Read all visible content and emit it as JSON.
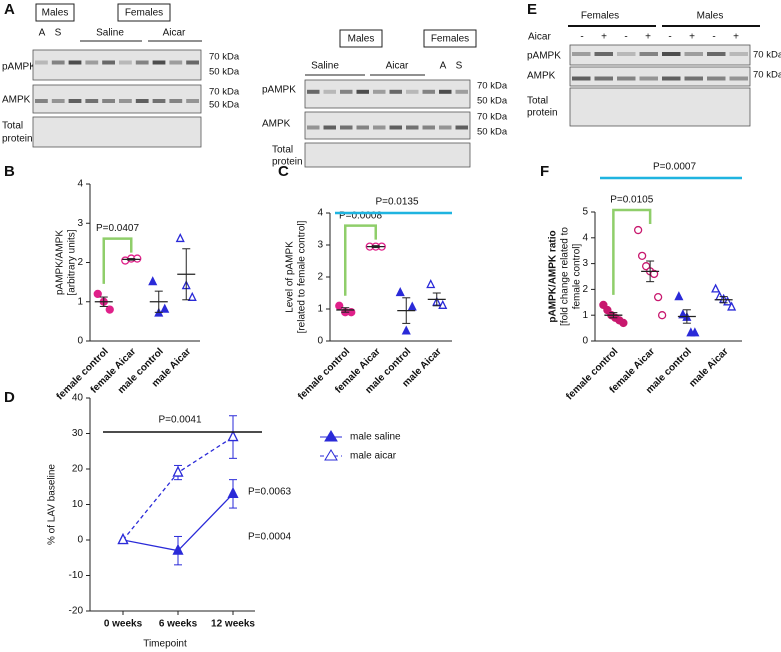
{
  "blots": [
    {
      "panel": "A",
      "boxes": [
        "Males",
        "Females"
      ],
      "lanes": [
        "A",
        "S",
        "Saline",
        "Aicar"
      ],
      "rows": [
        "pAMPK",
        "AMPK",
        "Total",
        "protein"
      ],
      "markers": [
        "70 kDa",
        "50 kDa",
        "70 kDa",
        "50 kDa"
      ]
    },
    {
      "boxes": [
        "Males",
        "Females"
      ],
      "lanes": [
        "Saline",
        "Aicar",
        "A",
        "S"
      ],
      "rows": [
        "pAMPK",
        "AMPK",
        "Total",
        "protein"
      ],
      "markers": [
        "70 kDa",
        "50 kDa",
        "70 kDa",
        "50 kDa"
      ]
    },
    {
      "panel": "E",
      "groups": [
        "Females",
        "Males"
      ],
      "treatment": "Aicar",
      "signs": [
        "-",
        "+",
        "-",
        "+",
        "-",
        "+",
        "-",
        "+"
      ],
      "rows": [
        "pAMPK",
        "AMPK",
        "Total",
        "protein"
      ],
      "markers": [
        "70 kDa",
        "70 kDa"
      ]
    }
  ],
  "chart_data": [
    {
      "type": "dotplot",
      "panel": "B",
      "ylabel": [
        "pAMPK/AMPK",
        "[arbitrary units]"
      ],
      "ylim": [
        0,
        4
      ],
      "yticks": [
        0,
        1,
        2,
        3,
        4
      ],
      "groups": [
        {
          "name": "female control",
          "color": "#e0218a",
          "marker": "circle",
          "filled": true,
          "values": [
            1.2,
            1.0,
            0.8
          ],
          "mean": 1.0,
          "sem": 0.12
        },
        {
          "name": "female Aicar",
          "color": "#e0218a",
          "marker": "circle",
          "filled": false,
          "values": [
            2.05,
            2.1,
            2.1
          ],
          "mean": 2.08,
          "sem": 0.02
        },
        {
          "name": "male control",
          "color": "#2a2ad8",
          "marker": "triangle",
          "filled": true,
          "values": [
            1.5,
            0.7,
            0.8
          ],
          "mean": 1.0,
          "sem": 0.27
        },
        {
          "name": "male Aicar",
          "color": "#2a2ad8",
          "marker": "triangle",
          "filled": false,
          "values": [
            2.6,
            1.4,
            1.1
          ],
          "mean": 1.7,
          "sem": 0.65
        }
      ],
      "annotations": [
        {
          "text": "P=0.0407",
          "style": "bracket",
          "color": "#8fce6a"
        }
      ]
    },
    {
      "type": "dotplot",
      "panel": "C",
      "ylabel": [
        "Level of pAMPK",
        "[related to female control]"
      ],
      "ylim": [
        0,
        4
      ],
      "yticks": [
        0,
        1,
        2,
        3,
        4
      ],
      "groups": [
        {
          "name": "female control",
          "color": "#e0218a",
          "marker": "circle",
          "filled": true,
          "values": [
            1.1,
            0.9,
            0.9
          ],
          "mean": 0.97,
          "sem": 0.07
        },
        {
          "name": "female Aicar",
          "color": "#e0218a",
          "marker": "circle",
          "filled": false,
          "values": [
            2.95,
            2.95,
            2.95
          ],
          "mean": 2.95,
          "sem": 0.03
        },
        {
          "name": "male control",
          "color": "#2a2ad8",
          "marker": "triangle",
          "filled": true,
          "values": [
            1.5,
            0.3,
            1.05
          ],
          "mean": 0.95,
          "sem": 0.4
        },
        {
          "name": "male Aicar",
          "color": "#2a2ad8",
          "marker": "triangle",
          "filled": false,
          "values": [
            1.75,
            1.2,
            1.1
          ],
          "mean": 1.3,
          "sem": 0.2
        }
      ],
      "annotations": [
        {
          "text": "P=0.0008",
          "style": "bracket",
          "color": "#8fce6a"
        },
        {
          "text": "P=0.0135",
          "style": "line",
          "color": "#1fb4e0"
        }
      ]
    },
    {
      "type": "dotplot",
      "panel": "F",
      "ylabel": [
        "pAMPK/AMPK ratio",
        "[fold change related to",
        "female control]"
      ],
      "ylim": [
        0,
        5
      ],
      "yticks": [
        0,
        1,
        2,
        3,
        4,
        5
      ],
      "groups": [
        {
          "name": "female control",
          "color": "#c8186e",
          "marker": "circle",
          "filled": true,
          "values": [
            1.4,
            1.2,
            1.0,
            0.9,
            0.8,
            0.7
          ],
          "mean": 1.0,
          "sem": 0.1
        },
        {
          "name": "female Aicar",
          "color": "#c8186e",
          "marker": "circle",
          "filled": false,
          "values": [
            4.3,
            3.3,
            2.9,
            2.7,
            2.6,
            1.7,
            1.0
          ],
          "mean": 2.7,
          "sem": 0.4
        },
        {
          "name": "male control",
          "color": "#2a2ad8",
          "marker": "triangle",
          "filled": true,
          "values": [
            1.7,
            1.0,
            0.9,
            0.3,
            0.3
          ],
          "mean": 0.95,
          "sem": 0.26
        },
        {
          "name": "male Aicar",
          "color": "#2a2ad8",
          "marker": "triangle",
          "filled": false,
          "values": [
            2.0,
            1.7,
            1.6,
            1.5,
            1.3
          ],
          "mean": 1.6,
          "sem": 0.12
        }
      ],
      "annotations": [
        {
          "text": "P=0.0105",
          "style": "bracket",
          "color": "#8fce6a"
        },
        {
          "text": "P=0.0007",
          "style": "line",
          "color": "#1fb4e0"
        }
      ]
    },
    {
      "type": "line",
      "panel": "D",
      "ylabel": "% of LAV baseline",
      "xlabel": "Timepoint",
      "categories": [
        "0 weeks",
        "6 weeks",
        "12 weeks"
      ],
      "ylim": [
        -20,
        40
      ],
      "yticks": [
        -20,
        -10,
        0,
        10,
        20,
        30,
        40
      ],
      "series": [
        {
          "name": "male saline",
          "color": "#2a2ad8",
          "dashed": false,
          "filled": true,
          "values": [
            0,
            -3,
            13
          ],
          "errors": [
            0,
            4,
            4
          ]
        },
        {
          "name": "male aicar",
          "color": "#2a2ad8",
          "dashed": true,
          "filled": false,
          "values": [
            0,
            19,
            29
          ],
          "errors": [
            0,
            2,
            6
          ]
        }
      ],
      "annotations": [
        "P=0.0041",
        "P=0.0063",
        "P=0.0004"
      ]
    }
  ]
}
